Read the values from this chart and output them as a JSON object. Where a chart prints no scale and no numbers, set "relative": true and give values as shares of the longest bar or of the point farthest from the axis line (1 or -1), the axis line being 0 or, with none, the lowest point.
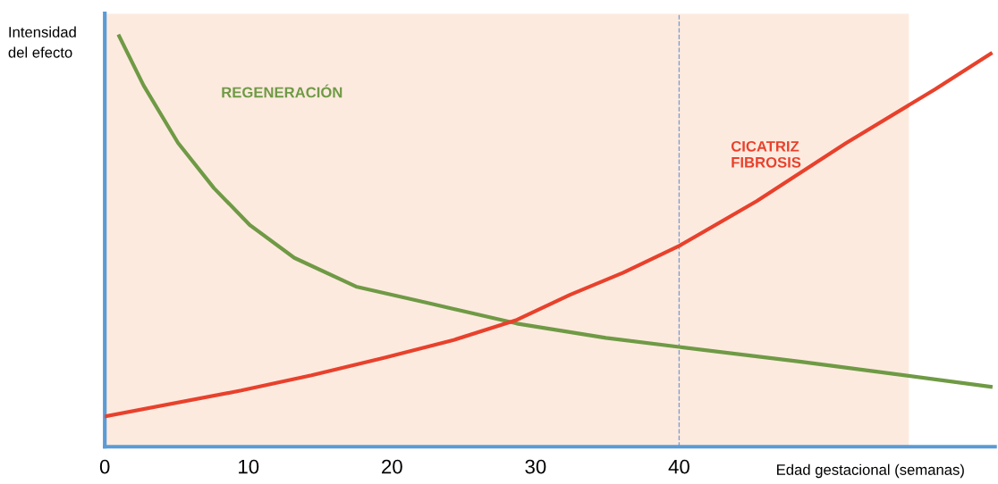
{
  "chart_data": {
    "type": "line",
    "relative": true,
    "ylabel": "Intensidad\ndel efecto",
    "xlabel": "Edad gestacional (semanas)",
    "xlim": [
      0,
      62
    ],
    "xticks": [
      0,
      10,
      20,
      30,
      40
    ],
    "grid": false,
    "legend": false,
    "marker": "none",
    "line_style": "solid",
    "series": [
      {
        "name": "REGENERACIÓN",
        "color": "#6f9a45",
        "x": [
          1,
          2.7,
          5.1,
          7.6,
          10.1,
          13.2,
          17.5,
          22.5,
          28.7,
          34.9,
          40,
          48.5,
          54.8,
          61.7
        ],
        "values": [
          1.0,
          0.88,
          0.74,
          0.63,
          0.54,
          0.46,
          0.39,
          0.35,
          0.3,
          0.265,
          0.243,
          0.207,
          0.178,
          0.146
        ]
      },
      {
        "name": "CICATRIZ\nFIBROSIS",
        "color": "#e8412c",
        "x": [
          0,
          9.5,
          14.4,
          19.5,
          24.3,
          28.7,
          32.4,
          36.1,
          40,
          45.4,
          51.6,
          57.8,
          61.7
        ],
        "values": [
          0.074,
          0.137,
          0.174,
          0.217,
          0.26,
          0.309,
          0.37,
          0.424,
          0.489,
          0.598,
          0.739,
          0.87,
          0.957
        ]
      }
    ],
    "ref_lines": [
      {
        "axis": "x",
        "value": 40,
        "color": "#7f9fcf",
        "line_style": "dashed"
      }
    ],
    "bands": [
      {
        "axis": "x",
        "from": 0,
        "to": 56,
        "color": "#fdeadf"
      }
    ]
  }
}
